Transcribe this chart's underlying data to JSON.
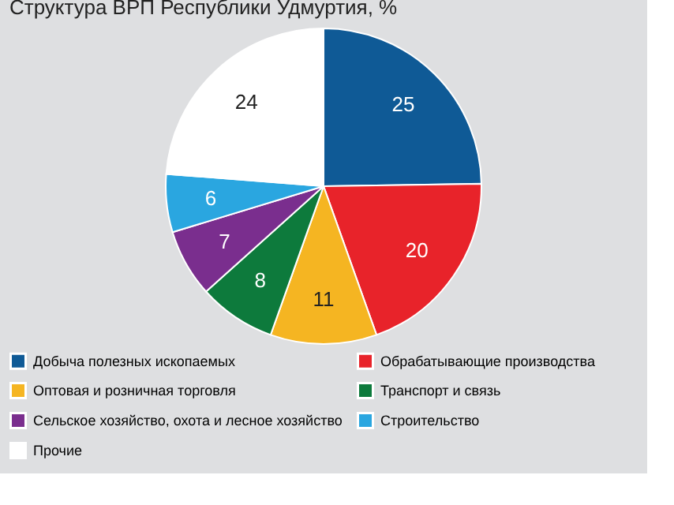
{
  "chart_data": {
    "type": "pie",
    "title": "Структура ВРП Республики Удмуртия, %",
    "categories": [
      "Добыча полезных ископаемых",
      "Обрабатывающие производства",
      "Оптовая  и розничная торговля",
      "Транспорт и связь",
      "Сельское хозяйство, охота и лесное хозяйство",
      "Строительство",
      "Прочие"
    ],
    "values": [
      25,
      20,
      11,
      8,
      7,
      6,
      24
    ],
    "colors": [
      "#0f5a96",
      "#e8232a",
      "#f5b522",
      "#0d7a3c",
      "#7a2e8e",
      "#2aa6e0",
      "#ffffff"
    ],
    "data_labels": true,
    "legend": "bottom"
  }
}
